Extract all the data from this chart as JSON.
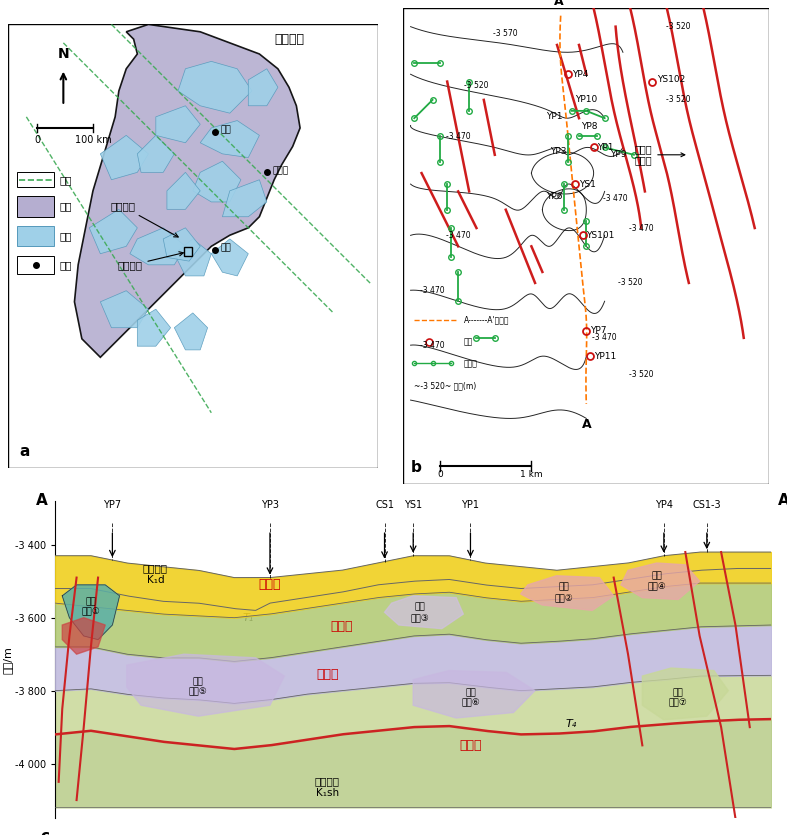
{
  "panel_a_label": "a",
  "panel_b_label": "b",
  "panel_c_label": "c",
  "map_title": "松辽盆地",
  "fault_zone_label": "达尔罕\n断裂带",
  "changling_label": "长岭断陷",
  "songnan_label": "松南气田",
  "daqing_label": "大庆",
  "haerbin_label": "哈尔滨",
  "changchun_label": "长春",
  "legend_fault": "断层",
  "legend_basin": "盆地",
  "legend_graben": "断陷",
  "legend_city": "城市",
  "section_wells_c": [
    "YP7",
    "YP3",
    "CS1",
    "YS1",
    "YP1",
    "YP4",
    "CS1-3"
  ],
  "section_wells_x": [
    8,
    30,
    46,
    50,
    58,
    85,
    91
  ],
  "cycle_labels": [
    "旋回四",
    "旋回三",
    "旋回二",
    "旋回一"
  ],
  "cycle_colors": [
    "#cc0000",
    "#cc0000",
    "#cc0000",
    "#cc0000"
  ],
  "formation_label_top": "登娄库组\nK₁d",
  "formation_label_bottom": "沙河子组\nK₁sh",
  "T1_label": "T₁",
  "T4_label": "T₄",
  "ylabel_section": "海拔/m",
  "yticks_section": [
    -3400,
    -3600,
    -3800,
    -4000
  ],
  "scale_b": "1 km",
  "scale_a": "100 km",
  "colors": {
    "basin_fill": "#b5aed0",
    "graben_fill": "#9fd0e8",
    "fault_dashed_green": "#3daa55",
    "fault_solid_red": "#cc1111",
    "section_line_orange": "#ff7700",
    "vertical_well_red": "#cc1111",
    "horiz_well_green": "#22aa44",
    "layer_yellow": "#f0d020",
    "layer_green_light": "#c8d898",
    "layer_green_mid": "#b0c870",
    "layer_purple": "#bdb8dc",
    "layer_teal": "#5ab0a8",
    "layer_pink": "#e8a8a8",
    "layer_red_line": "#cc2222",
    "layer_bottom_green": "#b8cc88",
    "background": "#ffffff"
  }
}
